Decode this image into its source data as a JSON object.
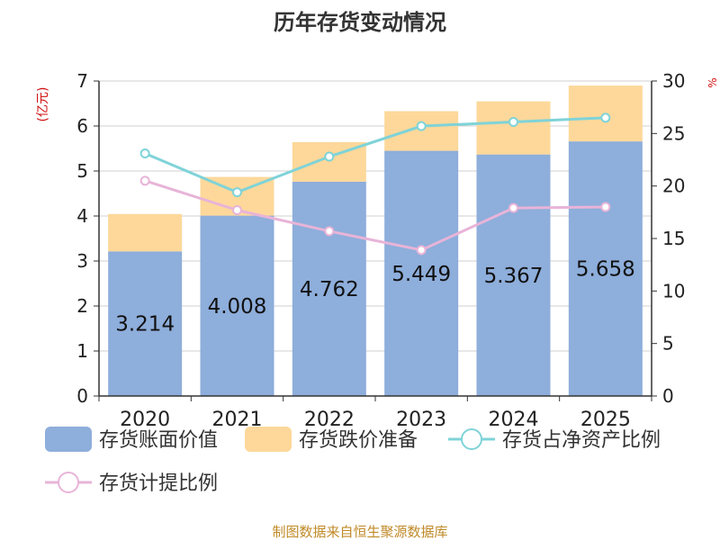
{
  "chart_data": {
    "type": "bar",
    "title": "历年存货变动情况",
    "y_left_label": "(亿元)",
    "y_right_label": "%",
    "categories": [
      "2020",
      "2021",
      "2022",
      "2023",
      "2024",
      "2025"
    ],
    "y_left_ticks": [
      "0",
      "1",
      "2",
      "3",
      "4",
      "5",
      "6",
      "7"
    ],
    "y_right_ticks": [
      "0",
      "5",
      "10",
      "15",
      "20",
      "25",
      "30"
    ],
    "ylim_left": [
      0,
      7
    ],
    "ylim_right": [
      0,
      30
    ],
    "grid": true,
    "legend_position": "bottom",
    "series": [
      {
        "name": "存货账面价值",
        "kind": "bar-stack-base",
        "axis": "left",
        "color": "#8eaedb",
        "values": [
          3.214,
          4.008,
          4.762,
          5.449,
          5.367,
          5.658
        ],
        "labels": [
          "3.214",
          "4.008",
          "4.762",
          "5.449",
          "5.367",
          "5.658"
        ]
      },
      {
        "name": "存货跌价准备",
        "kind": "bar-stack-top",
        "axis": "left",
        "color": "#fdd89a",
        "values": [
          0.83,
          0.86,
          0.88,
          0.88,
          1.18,
          1.24
        ]
      },
      {
        "name": "存货占净资产比例",
        "kind": "line",
        "axis": "right",
        "color": "#7fd3d8",
        "values": [
          23.1,
          19.4,
          22.8,
          25.7,
          26.1,
          26.5
        ]
      },
      {
        "name": "存货计提比例",
        "kind": "line",
        "axis": "right",
        "color": "#e8b4d8",
        "values": [
          20.5,
          17.7,
          15.7,
          13.9,
          17.9,
          18.0
        ]
      }
    ],
    "source": "制图数据来自恒生聚源数据库"
  }
}
